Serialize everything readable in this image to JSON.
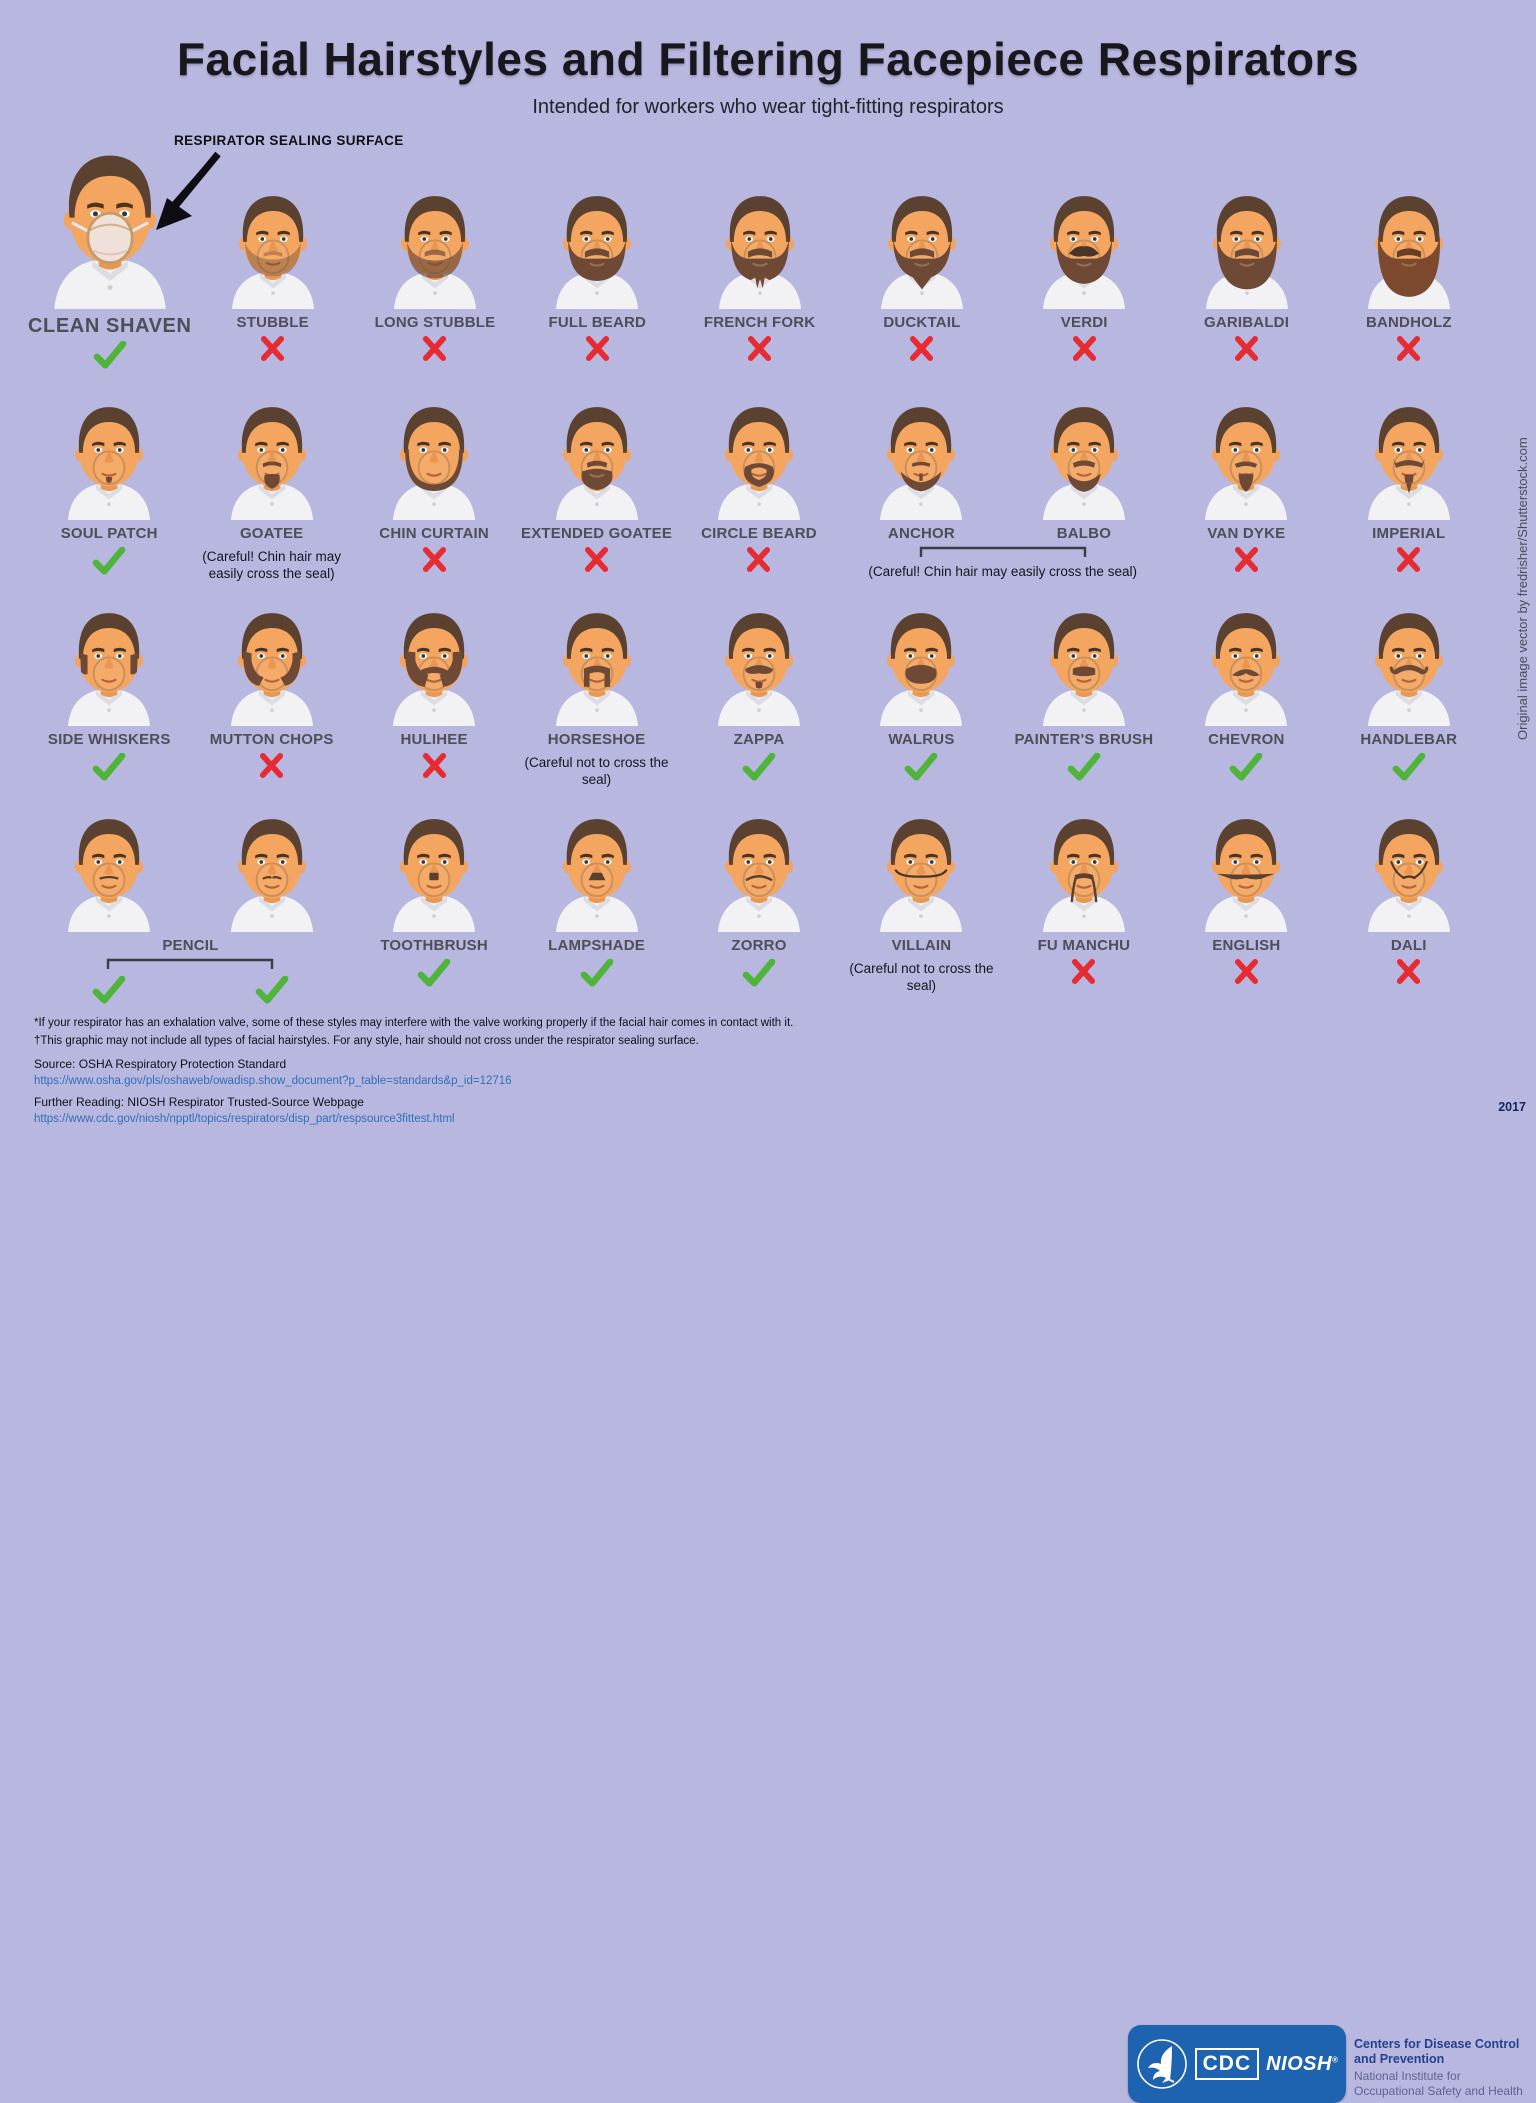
{
  "header": {
    "title": "Facial Hairstyles and Filtering Facepiece Respirators",
    "subtitle": "Intended for workers who wear tight-fitting respirators",
    "annotation": "RESPIRATOR SEALING SURFACE"
  },
  "credit": "Original image vector by fredrisher/Shutterstock.com",
  "year": "2017",
  "colors": {
    "background": "#b8b7df",
    "check_green": "#4eb43a",
    "cross_red": "#e62b33",
    "logo_blue": "#1e63b0",
    "label_gray": "#4e4e58",
    "link_blue": "#2f6fb8"
  },
  "grid": {
    "rows": [
      {
        "cells": [
          {
            "type": "single",
            "label": "CLEAN SHAVEN",
            "style": "clean-shaven",
            "mark": "check",
            "large": true
          },
          {
            "type": "single",
            "label": "STUBBLE",
            "style": "stubble",
            "mark": "cross"
          },
          {
            "type": "single",
            "label": "LONG STUBBLE",
            "style": "long-stubble",
            "mark": "cross"
          },
          {
            "type": "single",
            "label": "FULL BEARD",
            "style": "full-beard",
            "mark": "cross"
          },
          {
            "type": "single",
            "label": "FRENCH FORK",
            "style": "french-fork",
            "mark": "cross"
          },
          {
            "type": "single",
            "label": "DUCKTAIL",
            "style": "ducktail",
            "mark": "cross"
          },
          {
            "type": "single",
            "label": "VERDI",
            "style": "verdi",
            "mark": "cross"
          },
          {
            "type": "single",
            "label": "GARIBALDI",
            "style": "garibaldi",
            "mark": "cross"
          },
          {
            "type": "single",
            "label": "BANDHOLZ",
            "style": "bandholz",
            "mark": "cross"
          }
        ]
      },
      {
        "cells": [
          {
            "type": "single",
            "label": "SOUL PATCH",
            "style": "soul-patch",
            "mark": "check"
          },
          {
            "type": "single",
            "label": "GOATEE",
            "style": "goatee",
            "mark": "none",
            "caption": "(Careful! Chin hair may easily cross the seal)"
          },
          {
            "type": "single",
            "label": "CHIN CURTAIN",
            "style": "chin-curtain",
            "mark": "cross"
          },
          {
            "type": "single",
            "label": "EXTENDED GOATEE",
            "style": "extended-goatee",
            "mark": "cross"
          },
          {
            "type": "single",
            "label": "CIRCLE BEARD",
            "style": "circle-beard",
            "mark": "cross"
          },
          {
            "type": "pair",
            "labels": [
              "ANCHOR",
              "BALBO"
            ],
            "styles": [
              "anchor",
              "balbo"
            ],
            "caption": "(Careful! Chin hair may easily cross the seal)",
            "span": 2
          },
          {
            "type": "single",
            "label": "VAN DYKE",
            "style": "van-dyke",
            "mark": "cross"
          },
          {
            "type": "single",
            "label": "IMPERIAL",
            "style": "imperial",
            "mark": "cross"
          }
        ]
      },
      {
        "cells": [
          {
            "type": "single",
            "label": "SIDE WHISKERS",
            "style": "side-whiskers",
            "mark": "check"
          },
          {
            "type": "single",
            "label": "MUTTON CHOPS",
            "style": "mutton-chops",
            "mark": "cross"
          },
          {
            "type": "single",
            "label": "HULIHEE",
            "style": "hulihee",
            "mark": "cross"
          },
          {
            "type": "single",
            "label": "HORSESHOE",
            "style": "horseshoe",
            "mark": "none",
            "caption": "(Careful not to cross the seal)"
          },
          {
            "type": "single",
            "label": "ZAPPA",
            "style": "zappa",
            "mark": "check"
          },
          {
            "type": "single",
            "label": "WALRUS",
            "style": "walrus",
            "mark": "check"
          },
          {
            "type": "single",
            "label": "PAINTER'S BRUSH",
            "style": "painters-brush",
            "mark": "check"
          },
          {
            "type": "single",
            "label": "CHEVRON",
            "style": "chevron",
            "mark": "check"
          },
          {
            "type": "single",
            "label": "HANDLEBAR",
            "style": "handlebar",
            "mark": "check"
          }
        ]
      },
      {
        "cells": [
          {
            "type": "pair-shared-label",
            "label": "PENCIL",
            "styles": [
              "pencil",
              "pencil-alt"
            ],
            "marks": [
              "check",
              "check"
            ],
            "span": 2
          },
          {
            "type": "single",
            "label": "TOOTHBRUSH",
            "style": "toothbrush",
            "mark": "check"
          },
          {
            "type": "single",
            "label": "LAMPSHADE",
            "style": "lampshade",
            "mark": "check"
          },
          {
            "type": "single",
            "label": "ZORRO",
            "style": "zorro",
            "mark": "check"
          },
          {
            "type": "single",
            "label": "VILLAIN",
            "style": "villain",
            "mark": "none",
            "caption": "(Careful not to cross the seal)"
          },
          {
            "type": "single",
            "label": "FU MANCHU",
            "style": "fu-manchu",
            "mark": "cross"
          },
          {
            "type": "single",
            "label": "ENGLISH",
            "style": "english",
            "mark": "cross"
          },
          {
            "type": "single",
            "label": "DALI",
            "style": "dali",
            "mark": "cross"
          }
        ]
      }
    ]
  },
  "footer": {
    "footnotes": [
      "*If your respirator has an exhalation valve, some of these styles may interfere with the valve working properly if the facial hair comes in contact with it.",
      "†This graphic may not include all types of facial hairstyles. For any style, hair should not cross under the respirator sealing surface."
    ],
    "source_label": "Source: OSHA Respiratory Protection Standard",
    "source_url": "https://www.osha.gov/pls/oshaweb/owadisp.show_document?p_table=standards&p_id=12716",
    "further_label": "Further Reading: NIOSH Respirator Trusted-Source Webpage",
    "further_url": "https://www.cdc.gov/niosh/npptl/topics/respirators/disp_part/respsource3fittest.html",
    "logo": {
      "cdc": "CDC",
      "niosh": "NIOSH",
      "org_bold": "Centers for Disease Control and Prevention",
      "org_light": "National Institute for Occupational Safety and Health"
    }
  }
}
